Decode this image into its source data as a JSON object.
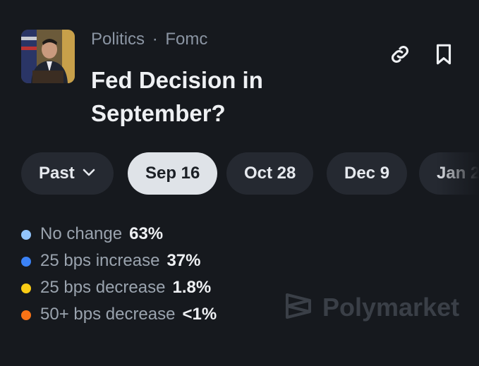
{
  "header": {
    "category": "Politics",
    "separator": "·",
    "subcategory": "Fomc",
    "title": "Fed Decision in September?"
  },
  "tabs": [
    {
      "label": "Past",
      "dropdown": true
    },
    {
      "label": "Sep 16",
      "selected": true
    },
    {
      "label": "Oct 28"
    },
    {
      "label": "Dec 9"
    },
    {
      "label": "Jan 2"
    }
  ],
  "outcomes": [
    {
      "label": "No change",
      "percent": "63%",
      "color": "#93c5fd"
    },
    {
      "label": "25 bps increase",
      "percent": "37%",
      "color": "#3b82f6"
    },
    {
      "label": "25 bps decrease",
      "percent": "1.8%",
      "color": "#facc15"
    },
    {
      "label": "50+ bps decrease",
      "percent": "<1%",
      "color": "#f97316"
    }
  ],
  "watermark": "Polymarket"
}
